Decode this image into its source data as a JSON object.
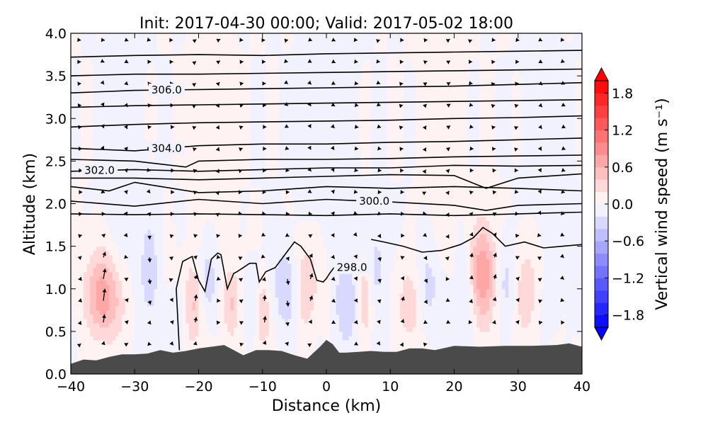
{
  "chart_data": {
    "type": "filled-contour cross-section",
    "title": "Init: 2017-04-30 00:00; Valid: 2017-05-02 18:00",
    "xlabel": "Distance (km)",
    "ylabel": "Altitude (km)",
    "xlim": [
      -40,
      40
    ],
    "ylim": [
      0,
      4
    ],
    "x_ticks": [
      -40,
      -30,
      -20,
      -10,
      0,
      10,
      20,
      30,
      40
    ],
    "x_tick_labels": [
      "−40",
      "−30",
      "−20",
      "−10",
      "0",
      "10",
      "20",
      "30",
      "40"
    ],
    "y_ticks": [
      0,
      0.5,
      1,
      1.5,
      2,
      2.5,
      3,
      3.5,
      4
    ],
    "y_tick_labels": [
      "0.0",
      "0.5",
      "1.0",
      "1.5",
      "2.0",
      "2.5",
      "3.0",
      "3.5",
      "4.0"
    ],
    "colorbar": {
      "label": "Vertical wind speed (m s⁻¹)",
      "min": -2.0,
      "max": 2.0,
      "extend": "both",
      "colormap": "bwr",
      "ticks": [
        -1.8,
        -1.2,
        -0.6,
        0.0,
        0.6,
        1.2,
        1.8
      ],
      "tick_labels": [
        "−1.8",
        "−1.2",
        "−0.6",
        "0.0",
        "0.6",
        "1.2",
        "1.8"
      ],
      "color_low": "#0000ff",
      "color_mid": "#ffffff",
      "color_high": "#ff0000"
    },
    "terrain": {
      "color": "#4a4a4a",
      "x": [
        -40,
        -38,
        -36,
        -34,
        -32,
        -30,
        -28,
        -26,
        -24,
        -22,
        -20,
        -18,
        -16,
        -15,
        -13,
        -11,
        -9,
        -7,
        -5,
        -3,
        -1,
        0,
        1,
        2,
        3,
        5,
        7,
        9,
        11,
        13,
        15,
        17,
        20,
        24,
        28,
        32,
        36,
        38,
        40
      ],
      "y": [
        0.12,
        0.17,
        0.16,
        0.2,
        0.23,
        0.23,
        0.24,
        0.28,
        0.25,
        0.27,
        0.3,
        0.32,
        0.34,
        0.3,
        0.22,
        0.28,
        0.28,
        0.27,
        0.22,
        0.18,
        0.32,
        0.4,
        0.35,
        0.25,
        0.25,
        0.26,
        0.27,
        0.26,
        0.26,
        0.3,
        0.3,
        0.28,
        0.33,
        0.32,
        0.33,
        0.33,
        0.34,
        0.36,
        0.32
      ]
    },
    "w_features": [
      {
        "x": -35,
        "z": 0.9,
        "sx": 2.2,
        "sz": 0.35,
        "w": 0.65
      },
      {
        "x": -27.5,
        "z": 1.3,
        "sx": 1.2,
        "sz": 0.45,
        "w": -0.25
      },
      {
        "x": -23,
        "z": 0.7,
        "sx": 1.1,
        "sz": 0.3,
        "w": -0.2
      },
      {
        "x": -21,
        "z": 0.8,
        "sx": 1.0,
        "sz": 0.35,
        "w": 0.4
      },
      {
        "x": -18.5,
        "z": 1.1,
        "sx": 0.8,
        "sz": 0.25,
        "w": -0.25
      },
      {
        "x": -15,
        "z": 0.8,
        "sx": 1.0,
        "sz": 0.3,
        "w": 0.45
      },
      {
        "x": -11,
        "z": 0.9,
        "sx": 1.2,
        "sz": 0.3,
        "w": -0.35
      },
      {
        "x": -10,
        "z": 0.75,
        "sx": 0.8,
        "sz": 0.3,
        "w": 0.55
      },
      {
        "x": -6,
        "z": 1.0,
        "sx": 1.5,
        "sz": 0.35,
        "w": -0.35
      },
      {
        "x": -3.5,
        "z": 1.0,
        "sx": 1.2,
        "sz": 0.35,
        "w": 0.5
      },
      {
        "x": 3,
        "z": 0.8,
        "sx": 1.3,
        "sz": 0.35,
        "w": -0.4
      },
      {
        "x": 6,
        "z": 0.9,
        "sx": 0.8,
        "sz": 0.3,
        "w": 0.5
      },
      {
        "x": 8,
        "z": 1.3,
        "sx": 1.2,
        "sz": 0.35,
        "w": -0.3
      },
      {
        "x": 13,
        "z": 0.8,
        "sx": 1.1,
        "sz": 0.3,
        "w": 0.3
      },
      {
        "x": 16,
        "z": 1.0,
        "sx": 1.0,
        "sz": 0.3,
        "w": -0.2
      },
      {
        "x": 22,
        "z": 1.0,
        "sx": 1.0,
        "sz": 0.4,
        "w": -0.35
      },
      {
        "x": 24.5,
        "z": 1.2,
        "sx": 1.5,
        "sz": 0.4,
        "w": 0.8
      },
      {
        "x": 28,
        "z": 1.1,
        "sx": 1.0,
        "sz": 0.35,
        "w": -0.25
      },
      {
        "x": 31,
        "z": 0.9,
        "sx": 1.3,
        "sz": 0.4,
        "w": 0.35
      },
      {
        "x": 35,
        "z": 0.9,
        "sx": 1.0,
        "sz": 0.3,
        "w": -0.2
      },
      {
        "x": -32,
        "z": 2.6,
        "sx": 2.0,
        "sz": 1.0,
        "w": -0.12
      },
      {
        "x": -18,
        "z": 3.0,
        "sx": 2.0,
        "sz": 0.9,
        "w": 0.1
      },
      {
        "x": 0,
        "z": 2.8,
        "sx": 2.5,
        "sz": 1.0,
        "w": -0.1
      },
      {
        "x": 18,
        "z": 3.0,
        "sx": 2.0,
        "sz": 0.9,
        "w": 0.1
      },
      {
        "x": 34,
        "z": 2.8,
        "sx": 2.0,
        "sz": 1.0,
        "w": -0.1
      }
    ],
    "theta_contours": [
      {
        "x": [
          -40,
          -30,
          -20,
          -10,
          0,
          10,
          20,
          30,
          40
        ],
        "z": [
          3.72,
          3.74,
          3.75,
          3.74,
          3.76,
          3.77,
          3.78,
          3.79,
          3.8
        ]
      },
      {
        "x": [
          -40,
          -30,
          -20,
          -10,
          0,
          10,
          20,
          30,
          40
        ],
        "z": [
          3.5,
          3.52,
          3.52,
          3.53,
          3.54,
          3.55,
          3.56,
          3.57,
          3.58
        ]
      },
      {
        "x": [
          -40,
          -30,
          -20,
          -10,
          0,
          10,
          20,
          30,
          40
        ],
        "z": [
          3.3,
          3.33,
          3.34,
          3.35,
          3.36,
          3.37,
          3.38,
          3.4,
          3.42
        ],
        "label": "306.0",
        "label_x": -25
      },
      {
        "x": [
          -40,
          -30,
          -20,
          -10,
          0,
          10,
          20,
          30,
          40
        ],
        "z": [
          3.13,
          3.15,
          3.16,
          3.17,
          3.18,
          3.19,
          3.2,
          3.21,
          3.22
        ]
      },
      {
        "x": [
          -40,
          -30,
          -20,
          -10,
          0,
          10,
          20,
          30,
          40
        ],
        "z": [
          2.9,
          2.93,
          2.95,
          2.96,
          2.97,
          2.98,
          3.0,
          3.01,
          3.03
        ]
      },
      {
        "x": [
          -40,
          -30,
          -20,
          -10,
          0,
          10,
          20,
          30,
          40
        ],
        "z": [
          2.65,
          2.62,
          2.68,
          2.7,
          2.7,
          2.72,
          2.73,
          2.75,
          2.77
        ],
        "label": "304.0",
        "label_x": -25
      },
      {
        "x": [
          -40,
          -30,
          -22,
          -20,
          -10,
          0,
          10,
          20,
          30,
          40
        ],
        "z": [
          2.52,
          2.5,
          2.43,
          2.5,
          2.52,
          2.52,
          2.53,
          2.55,
          2.56,
          2.57
        ]
      },
      {
        "x": [
          -40,
          -30,
          -20,
          -10,
          0,
          10,
          20,
          30,
          40
        ],
        "z": [
          2.38,
          2.4,
          2.38,
          2.4,
          2.42,
          2.42,
          2.45,
          2.44,
          2.45
        ],
        "label": "302.0",
        "label_x": -35.5
      },
      {
        "x": [
          -40,
          -30,
          -20,
          -10,
          0,
          10,
          20,
          25,
          30,
          40
        ],
        "z": [
          2.3,
          2.3,
          2.28,
          2.3,
          2.32,
          2.34,
          2.33,
          2.18,
          2.3,
          2.35
        ]
      },
      {
        "x": [
          -40,
          -34,
          -30,
          -20,
          -10,
          0,
          10,
          20,
          30,
          40
        ],
        "z": [
          2.2,
          2.15,
          2.25,
          2.13,
          2.15,
          2.2,
          2.18,
          2.2,
          2.18,
          2.15
        ]
      },
      {
        "x": [
          -40,
          -30,
          -20,
          -10,
          0,
          10,
          20,
          25,
          30,
          40
        ],
        "z": [
          2.03,
          1.97,
          2.05,
          2.0,
          2.05,
          2.02,
          1.98,
          1.92,
          1.98,
          2.0
        ],
        "label": "300.0",
        "label_x": 7.5
      },
      {
        "x": [
          -40,
          -30,
          -20,
          -10,
          0,
          10,
          20,
          30,
          40
        ],
        "z": [
          1.88,
          1.87,
          1.88,
          1.87,
          1.86,
          1.88,
          1.86,
          1.88,
          1.9
        ]
      },
      {
        "x": [
          7,
          9,
          12,
          15,
          18,
          21,
          23,
          24.5,
          26,
          28,
          31,
          34,
          37,
          40
        ],
        "z": [
          1.58,
          1.55,
          1.5,
          1.43,
          1.45,
          1.52,
          1.6,
          1.72,
          1.65,
          1.5,
          1.55,
          1.48,
          1.5,
          1.52
        ]
      },
      {
        "x": [
          -23,
          -23.5,
          -22.5,
          -21,
          -20,
          -19,
          -18,
          -17,
          -16.5,
          -15.5,
          -14.5,
          -14,
          -13,
          -12,
          -11,
          -10.5,
          -9.5,
          -8,
          -6,
          -5,
          -4,
          -2.5,
          -1.5,
          -0.5,
          0,
          0.5,
          1.2
        ],
        "z": [
          0.28,
          1.0,
          1.32,
          1.38,
          1.1,
          0.97,
          1.35,
          1.42,
          1.4,
          1.0,
          1.18,
          1.2,
          1.25,
          1.3,
          1.3,
          1.08,
          1.2,
          1.25,
          1.45,
          1.55,
          1.5,
          1.35,
          1.1,
          1.08,
          1.12,
          1.18,
          1.25
        ],
        "label": "298.0",
        "label_x": 4
      }
    ],
    "wind_vectors": {
      "u_scale": 0.35,
      "w_scale": 3.0
    }
  }
}
